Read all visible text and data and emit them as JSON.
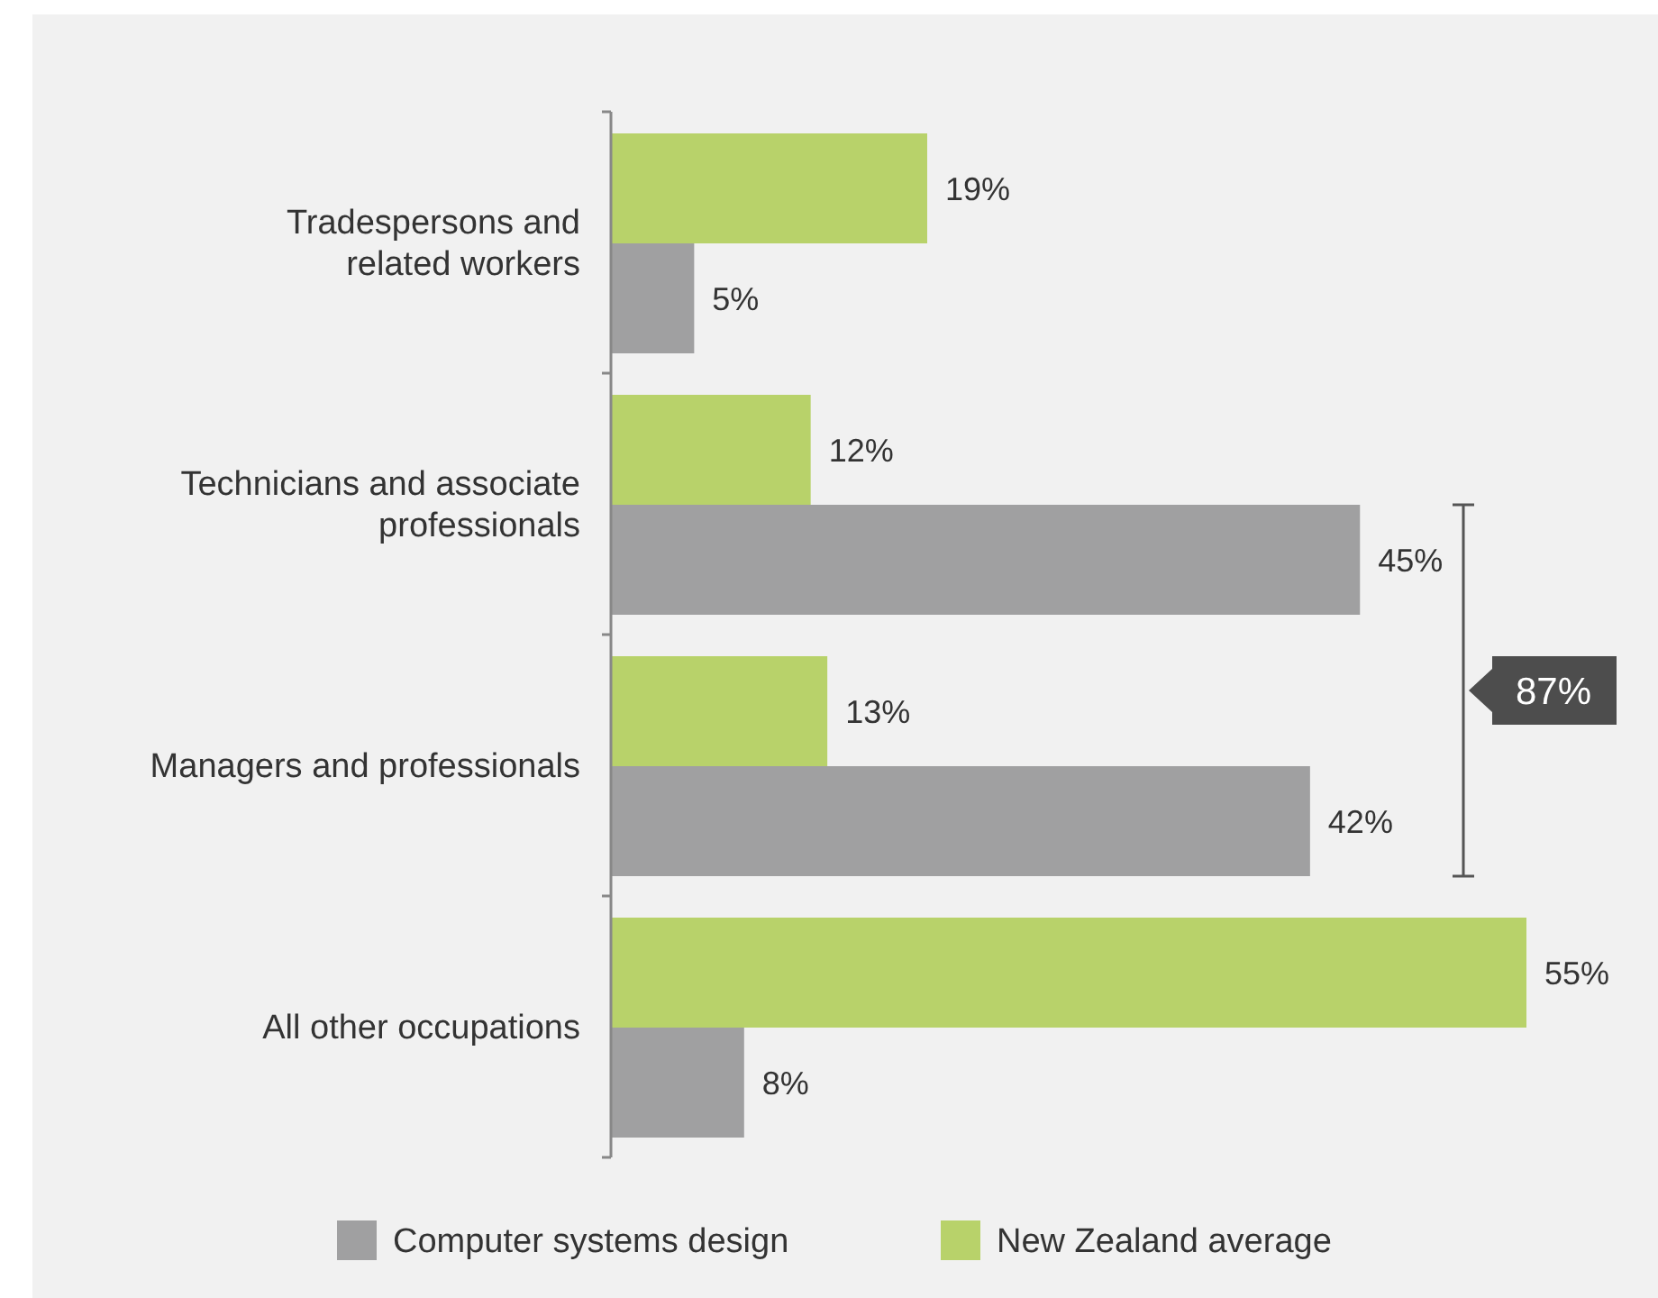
{
  "chart_data": {
    "type": "bar",
    "orientation": "horizontal",
    "categories": [
      "Tradespersons and\nrelated workers",
      "Technicians and associate\nprofessionals",
      "Managers and professionals",
      "All other occupations"
    ],
    "series": [
      {
        "name": "Computer systems design",
        "color": "#a0a0a1",
        "values": [
          5,
          45,
          42,
          8
        ],
        "value_labels": [
          "5%",
          "45%",
          "42%",
          "8%"
        ]
      },
      {
        "name": "New Zealand average",
        "color": "#b8d26a",
        "values": [
          19,
          12,
          13,
          55
        ],
        "value_labels": [
          "19%",
          "12%",
          "13%",
          "55%"
        ]
      }
    ],
    "legend": "bottom",
    "grid": false,
    "annotations": [
      "87%"
    ]
  }
}
